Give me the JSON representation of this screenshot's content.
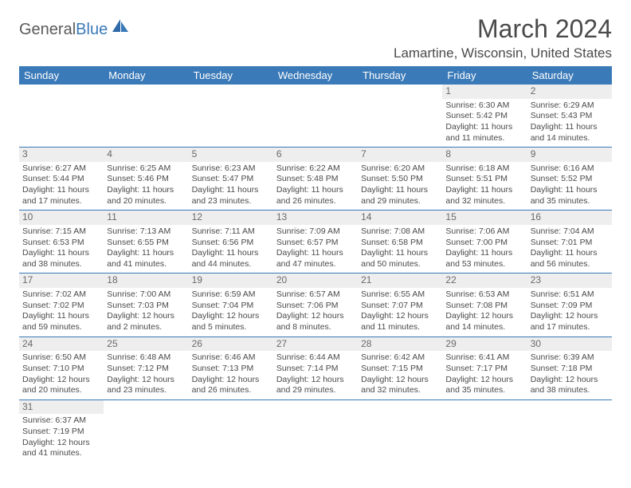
{
  "logo": {
    "text1": "General",
    "text2": "Blue"
  },
  "title": "March 2024",
  "location": "Lamartine, Wisconsin, United States",
  "colors": {
    "header_bg": "#3b7ab8",
    "daynum_bg": "#eeeeee",
    "text": "#4a4a4a"
  },
  "weekdays": [
    "Sunday",
    "Monday",
    "Tuesday",
    "Wednesday",
    "Thursday",
    "Friday",
    "Saturday"
  ],
  "days": [
    null,
    null,
    null,
    null,
    null,
    {
      "n": "1",
      "sr": "6:30 AM",
      "ss": "5:42 PM",
      "dl1": "11 hours",
      "dl2": "and 11 minutes."
    },
    {
      "n": "2",
      "sr": "6:29 AM",
      "ss": "5:43 PM",
      "dl1": "11 hours",
      "dl2": "and 14 minutes."
    },
    {
      "n": "3",
      "sr": "6:27 AM",
      "ss": "5:44 PM",
      "dl1": "11 hours",
      "dl2": "and 17 minutes."
    },
    {
      "n": "4",
      "sr": "6:25 AM",
      "ss": "5:46 PM",
      "dl1": "11 hours",
      "dl2": "and 20 minutes."
    },
    {
      "n": "5",
      "sr": "6:23 AM",
      "ss": "5:47 PM",
      "dl1": "11 hours",
      "dl2": "and 23 minutes."
    },
    {
      "n": "6",
      "sr": "6:22 AM",
      "ss": "5:48 PM",
      "dl1": "11 hours",
      "dl2": "and 26 minutes."
    },
    {
      "n": "7",
      "sr": "6:20 AM",
      "ss": "5:50 PM",
      "dl1": "11 hours",
      "dl2": "and 29 minutes."
    },
    {
      "n": "8",
      "sr": "6:18 AM",
      "ss": "5:51 PM",
      "dl1": "11 hours",
      "dl2": "and 32 minutes."
    },
    {
      "n": "9",
      "sr": "6:16 AM",
      "ss": "5:52 PM",
      "dl1": "11 hours",
      "dl2": "and 35 minutes."
    },
    {
      "n": "10",
      "sr": "7:15 AM",
      "ss": "6:53 PM",
      "dl1": "11 hours",
      "dl2": "and 38 minutes."
    },
    {
      "n": "11",
      "sr": "7:13 AM",
      "ss": "6:55 PM",
      "dl1": "11 hours",
      "dl2": "and 41 minutes."
    },
    {
      "n": "12",
      "sr": "7:11 AM",
      "ss": "6:56 PM",
      "dl1": "11 hours",
      "dl2": "and 44 minutes."
    },
    {
      "n": "13",
      "sr": "7:09 AM",
      "ss": "6:57 PM",
      "dl1": "11 hours",
      "dl2": "and 47 minutes."
    },
    {
      "n": "14",
      "sr": "7:08 AM",
      "ss": "6:58 PM",
      "dl1": "11 hours",
      "dl2": "and 50 minutes."
    },
    {
      "n": "15",
      "sr": "7:06 AM",
      "ss": "7:00 PM",
      "dl1": "11 hours",
      "dl2": "and 53 minutes."
    },
    {
      "n": "16",
      "sr": "7:04 AM",
      "ss": "7:01 PM",
      "dl1": "11 hours",
      "dl2": "and 56 minutes."
    },
    {
      "n": "17",
      "sr": "7:02 AM",
      "ss": "7:02 PM",
      "dl1": "11 hours",
      "dl2": "and 59 minutes."
    },
    {
      "n": "18",
      "sr": "7:00 AM",
      "ss": "7:03 PM",
      "dl1": "12 hours",
      "dl2": "and 2 minutes."
    },
    {
      "n": "19",
      "sr": "6:59 AM",
      "ss": "7:04 PM",
      "dl1": "12 hours",
      "dl2": "and 5 minutes."
    },
    {
      "n": "20",
      "sr": "6:57 AM",
      "ss": "7:06 PM",
      "dl1": "12 hours",
      "dl2": "and 8 minutes."
    },
    {
      "n": "21",
      "sr": "6:55 AM",
      "ss": "7:07 PM",
      "dl1": "12 hours",
      "dl2": "and 11 minutes."
    },
    {
      "n": "22",
      "sr": "6:53 AM",
      "ss": "7:08 PM",
      "dl1": "12 hours",
      "dl2": "and 14 minutes."
    },
    {
      "n": "23",
      "sr": "6:51 AM",
      "ss": "7:09 PM",
      "dl1": "12 hours",
      "dl2": "and 17 minutes."
    },
    {
      "n": "24",
      "sr": "6:50 AM",
      "ss": "7:10 PM",
      "dl1": "12 hours",
      "dl2": "and 20 minutes."
    },
    {
      "n": "25",
      "sr": "6:48 AM",
      "ss": "7:12 PM",
      "dl1": "12 hours",
      "dl2": "and 23 minutes."
    },
    {
      "n": "26",
      "sr": "6:46 AM",
      "ss": "7:13 PM",
      "dl1": "12 hours",
      "dl2": "and 26 minutes."
    },
    {
      "n": "27",
      "sr": "6:44 AM",
      "ss": "7:14 PM",
      "dl1": "12 hours",
      "dl2": "and 29 minutes."
    },
    {
      "n": "28",
      "sr": "6:42 AM",
      "ss": "7:15 PM",
      "dl1": "12 hours",
      "dl2": "and 32 minutes."
    },
    {
      "n": "29",
      "sr": "6:41 AM",
      "ss": "7:17 PM",
      "dl1": "12 hours",
      "dl2": "and 35 minutes."
    },
    {
      "n": "30",
      "sr": "6:39 AM",
      "ss": "7:18 PM",
      "dl1": "12 hours",
      "dl2": "and 38 minutes."
    },
    {
      "n": "31",
      "sr": "6:37 AM",
      "ss": "7:19 PM",
      "dl1": "12 hours",
      "dl2": "and 41 minutes."
    }
  ],
  "labels": {
    "sunrise": "Sunrise:",
    "sunset": "Sunset:",
    "daylight": "Daylight:"
  }
}
